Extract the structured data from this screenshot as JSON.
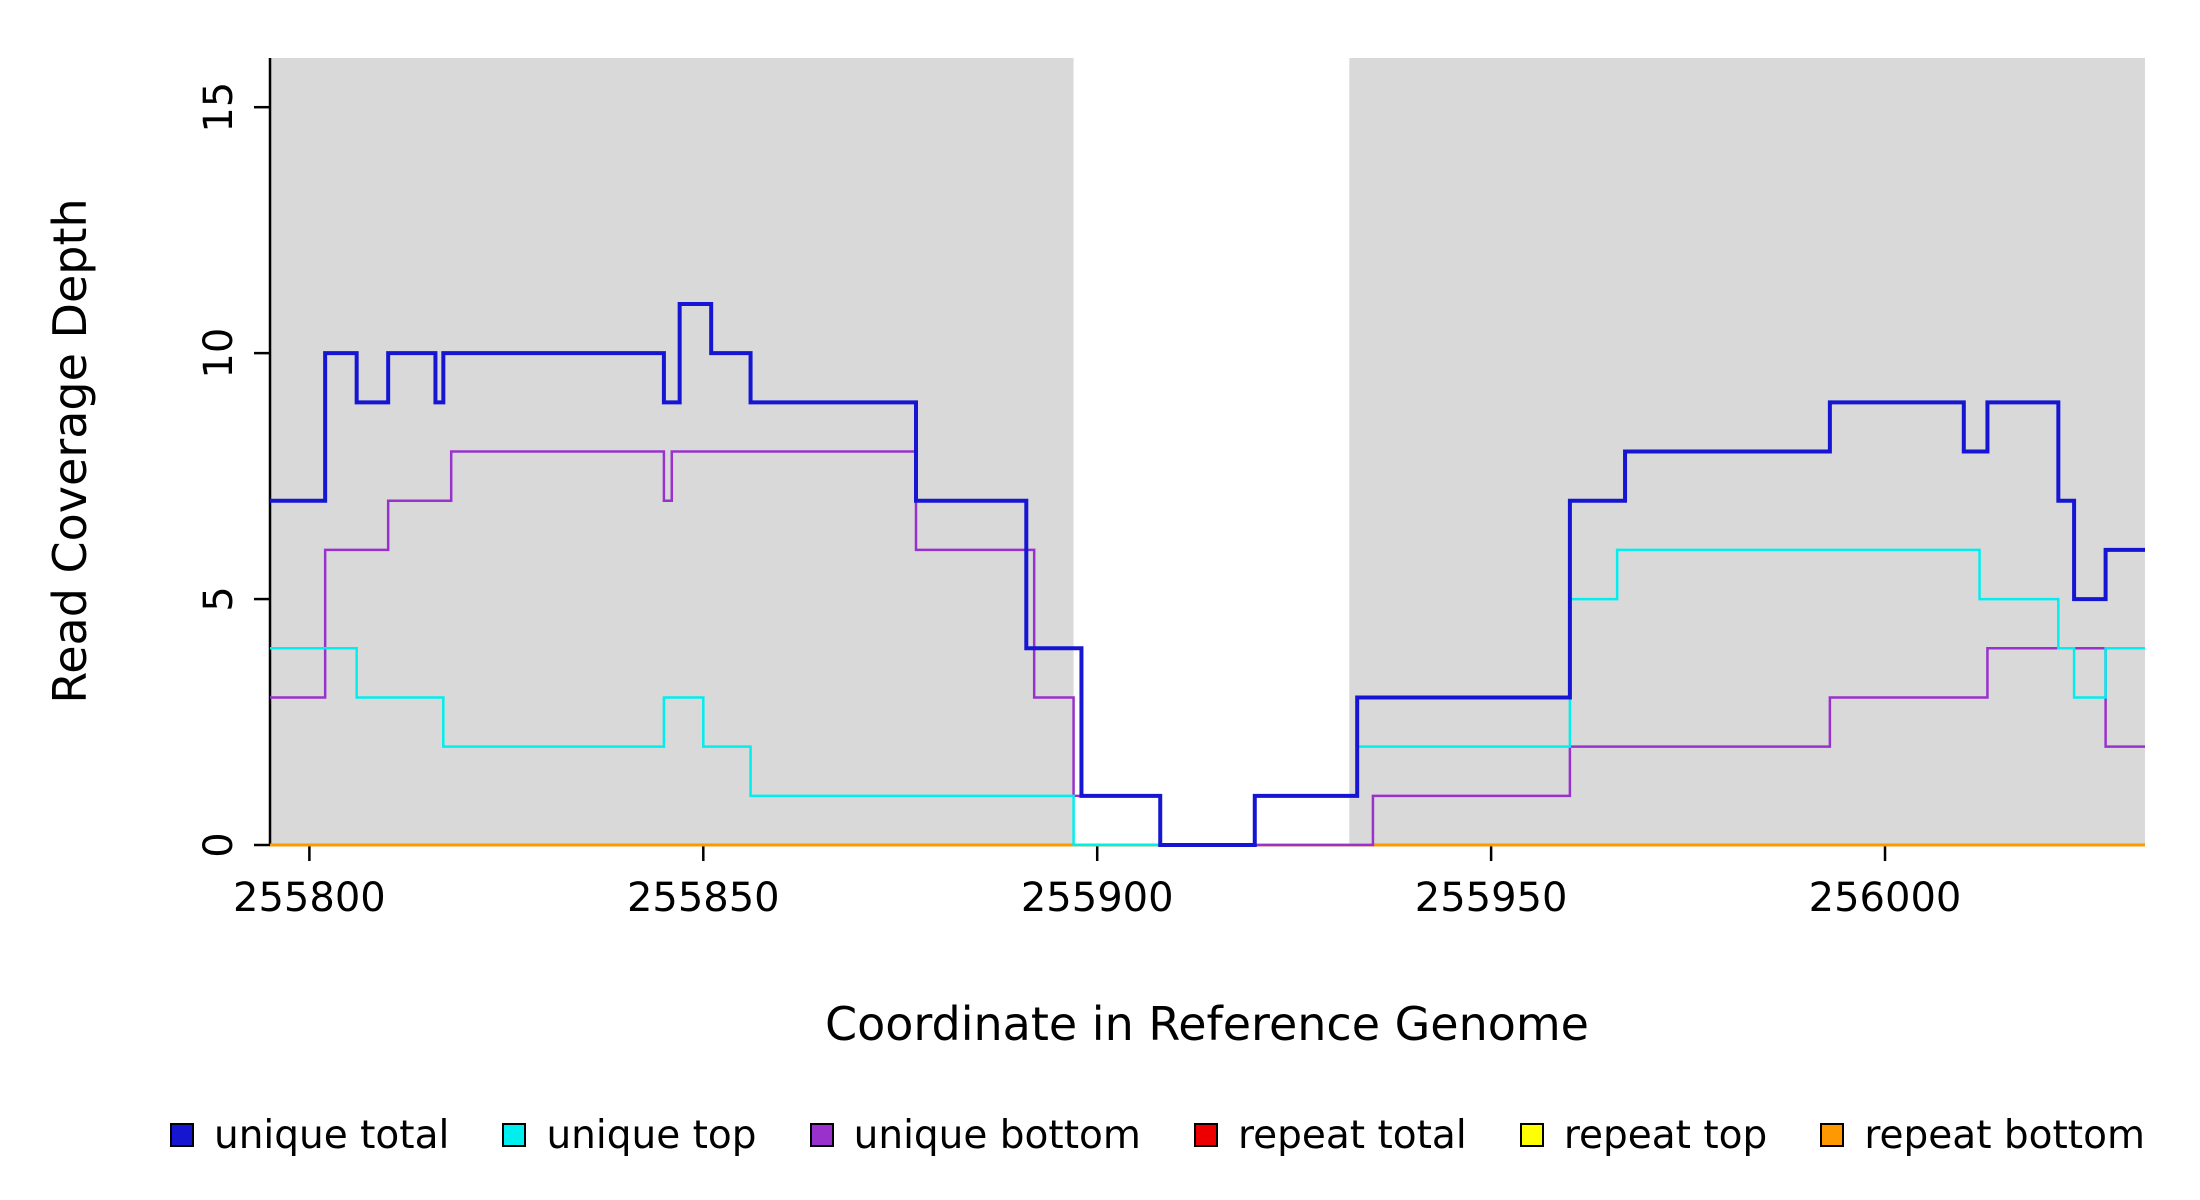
{
  "chart_data": {
    "type": "line",
    "step": true,
    "title": "",
    "xlabel": "Coordinate in Reference Genome",
    "ylabel": "Read Coverage Depth",
    "xlim": [
      255795,
      256033
    ],
    "ylim": [
      0,
      16
    ],
    "xticks": [
      255800,
      255850,
      255900,
      255950,
      256000
    ],
    "yticks": [
      0,
      5,
      10,
      15
    ],
    "grid": false,
    "legend_position": "bottom",
    "shade_color": "#D9D9D9",
    "shaded_regions": [
      {
        "from": 255795,
        "to": 255897
      },
      {
        "from": 255932,
        "to": 256033
      }
    ],
    "legend": [
      {
        "label": "unique total",
        "color": "#1616D2"
      },
      {
        "label": "unique top",
        "color": "#00EEEE"
      },
      {
        "label": "unique bottom",
        "color": "#9932CC"
      },
      {
        "label": "repeat total",
        "color": "#EE0000"
      },
      {
        "label": "repeat top",
        "color": "#FFFF00"
      },
      {
        "label": "repeat bottom",
        "color": "#FF9900"
      }
    ],
    "series": [
      {
        "name": "unique total",
        "color": "#1616D2",
        "width": 4,
        "points": [
          [
            255795,
            7
          ],
          [
            255802,
            10
          ],
          [
            255806,
            9
          ],
          [
            255810,
            10
          ],
          [
            255816,
            9
          ],
          [
            255817,
            10
          ],
          [
            255845,
            9
          ],
          [
            255847,
            11
          ],
          [
            255851,
            10
          ],
          [
            255856,
            9
          ],
          [
            255877,
            7
          ],
          [
            255891,
            4
          ],
          [
            255898,
            1
          ],
          [
            255908,
            0
          ],
          [
            255920,
            1
          ],
          [
            255933,
            3
          ],
          [
            255960,
            7
          ],
          [
            255967,
            8
          ],
          [
            255993,
            9
          ],
          [
            256010,
            8
          ],
          [
            256013,
            9
          ],
          [
            256022,
            7
          ],
          [
            256024,
            5
          ],
          [
            256028,
            6
          ]
        ]
      },
      {
        "name": "unique top",
        "color": "#00EEEE",
        "width": 2.5,
        "points": [
          [
            255795,
            4
          ],
          [
            255806,
            3
          ],
          [
            255817,
            2
          ],
          [
            255845,
            3
          ],
          [
            255850,
            2
          ],
          [
            255856,
            1
          ],
          [
            255897,
            0
          ],
          [
            255920,
            1
          ],
          [
            255933,
            2
          ],
          [
            255960,
            5
          ],
          [
            255966,
            6
          ],
          [
            256012,
            5
          ],
          [
            256022,
            4
          ],
          [
            256024,
            3
          ],
          [
            256028,
            4
          ]
        ]
      },
      {
        "name": "unique bottom",
        "color": "#9932CC",
        "width": 2.5,
        "points": [
          [
            255795,
            3
          ],
          [
            255802,
            6
          ],
          [
            255810,
            7
          ],
          [
            255818,
            8
          ],
          [
            255845,
            7
          ],
          [
            255846,
            8
          ],
          [
            255877,
            6
          ],
          [
            255892,
            3
          ],
          [
            255897,
            1
          ],
          [
            255908,
            0
          ],
          [
            255935,
            1
          ],
          [
            255960,
            2
          ],
          [
            255993,
            3
          ],
          [
            256013,
            4
          ],
          [
            256028,
            2
          ]
        ]
      },
      {
        "name": "repeat total",
        "color": "#EE0000",
        "width": 2.5,
        "points": [
          [
            255795,
            0
          ]
        ]
      },
      {
        "name": "repeat top",
        "color": "#FFFF00",
        "width": 2.5,
        "points": [
          [
            255795,
            0
          ]
        ]
      },
      {
        "name": "repeat bottom",
        "color": "#FF9900",
        "width": 2.5,
        "points": [
          [
            255795,
            0
          ]
        ]
      }
    ],
    "draw_order": [
      3,
      4,
      5,
      2,
      1,
      0
    ]
  }
}
